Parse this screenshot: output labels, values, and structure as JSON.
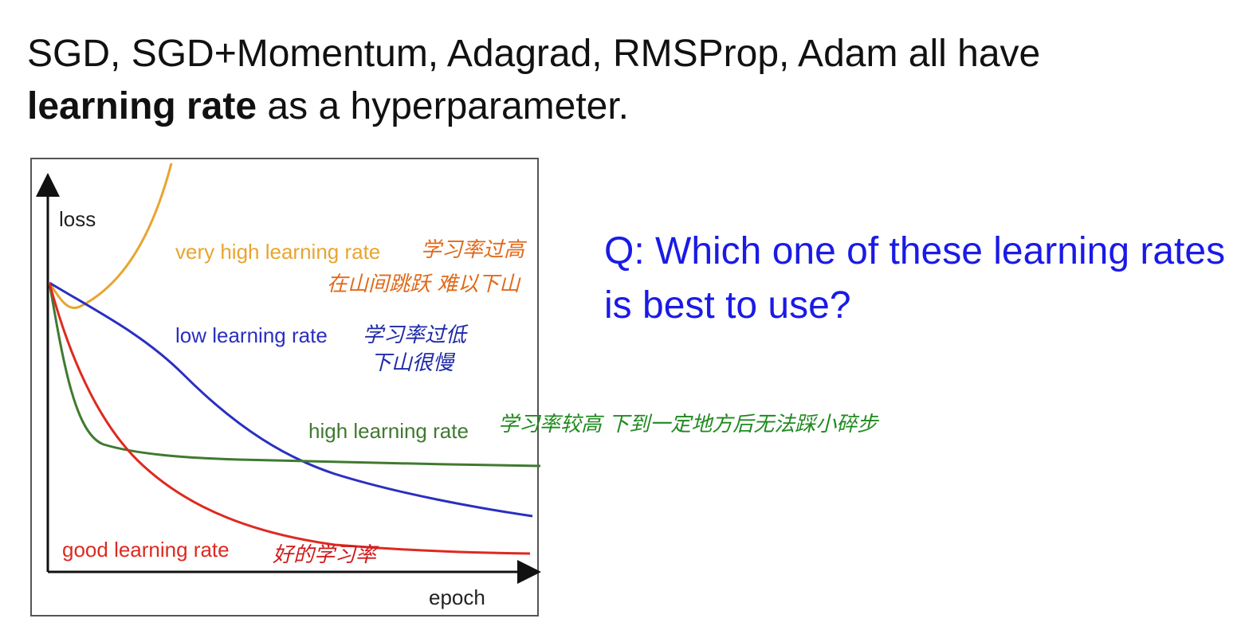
{
  "slide": {
    "title": {
      "line1": "SGD, SGD+Momentum, Adagrad, RMSProp, Adam all have",
      "bold": "learning rate",
      "rest": " as a hyperparameter."
    },
    "figure": {
      "y_label": "loss",
      "x_label": "epoch",
      "curves": [
        {
          "label": "very high learning rate",
          "note1": "学习率过高",
          "note2": "在山间跳跃 难以下山"
        },
        {
          "label": "low learning rate",
          "note1": "学习率过低",
          "note2": "下山很慢"
        },
        {
          "label": "high learning rate",
          "note1": "学习率较高  下到一定地方后无法踩小碎步"
        },
        {
          "label": "good learning rate",
          "note1": "好的学习率"
        }
      ]
    },
    "question": "Q: Which one of these learning rates is best to use?"
  }
}
